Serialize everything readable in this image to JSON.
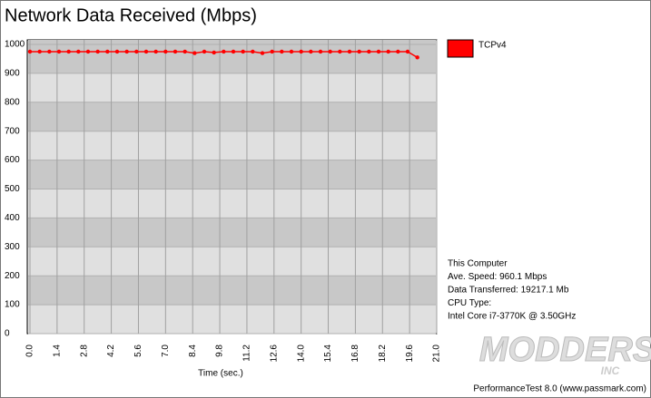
{
  "chart_data": {
    "type": "line",
    "title": "Network Data Received (Mbps)",
    "x_label": "Time (sec.)",
    "x": [
      0,
      0.5,
      1,
      1.5,
      2,
      2.5,
      3,
      3.5,
      4,
      4.5,
      5,
      5.5,
      6,
      6.5,
      7,
      7.5,
      8,
      8.5,
      9,
      9.5,
      10,
      10.5,
      11,
      11.5,
      12,
      12.5,
      13,
      13.5,
      14,
      14.5,
      15,
      15.5,
      16,
      16.5,
      17,
      17.5,
      18,
      18.5,
      19,
      19.5,
      20
    ],
    "series": [
      {
        "name": "TCPv4",
        "color": "#ff0000",
        "values": [
          975,
          975,
          975,
          975,
          975,
          975,
          975,
          975,
          975,
          975,
          975,
          975,
          975,
          975,
          975,
          975,
          975,
          970,
          975,
          972,
          975,
          975,
          975,
          975,
          970,
          975,
          975,
          975,
          975,
          975,
          975,
          975,
          975,
          975,
          975,
          975,
          975,
          975,
          975,
          975,
          955
        ]
      }
    ],
    "xlim": [
      0,
      21
    ],
    "xticks": [
      {
        "value": 0,
        "label": "0.0"
      },
      1.4,
      2.8,
      4.2,
      5.6,
      {
        "value": 7,
        "label": "7.0"
      },
      8.4,
      9.8,
      11.2,
      12.6,
      {
        "value": 14,
        "label": "14.0"
      },
      15.4,
      16.8,
      18.2,
      19.6,
      {
        "value": 21,
        "label": "21.0"
      }
    ],
    "ylim": [
      0,
      1000
    ],
    "yticks": [
      0,
      100,
      200,
      300,
      400,
      500,
      600,
      700,
      800,
      900,
      1000
    ],
    "grid": true,
    "legend": "right",
    "info": [
      "This Computer",
      "Ave. Speed: 960.1 Mbps",
      "Data Transferred: 19217.1 Mb",
      "CPU Type:",
      "Intel Core i7-3770K @ 3.50GHz"
    ],
    "footer": "PerformanceTest 8.0 (www.passmark.com)",
    "watermark": [
      "MODDERS",
      "INC"
    ]
  }
}
